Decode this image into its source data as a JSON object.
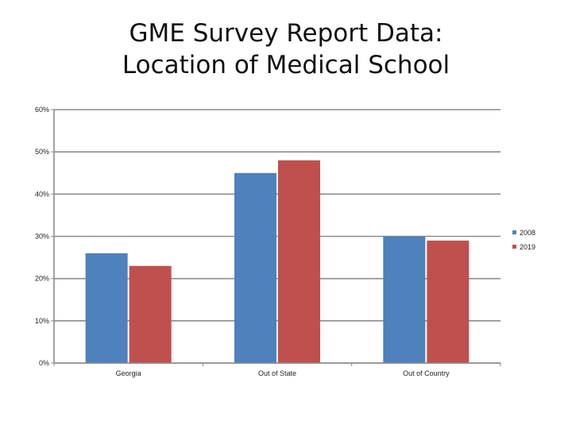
{
  "chart_data": {
    "type": "bar",
    "title_lines": [
      "GME Survey Report Data:",
      "Location of Medical School"
    ],
    "categories": [
      "Georgia",
      "Out of State",
      "Out of Country"
    ],
    "series": [
      {
        "name": "2008",
        "color": "#4F81BD",
        "values": [
          26,
          45,
          30
        ]
      },
      {
        "name": "2019",
        "color": "#C0504D",
        "values": [
          23,
          48,
          29
        ]
      }
    ],
    "y_ticks": [
      "0%",
      "10%",
      "20%",
      "30%",
      "40%",
      "50%",
      "60%"
    ],
    "ylim": [
      0,
      60
    ],
    "grid": true,
    "legend": "right",
    "xlabel": "",
    "ylabel": ""
  }
}
